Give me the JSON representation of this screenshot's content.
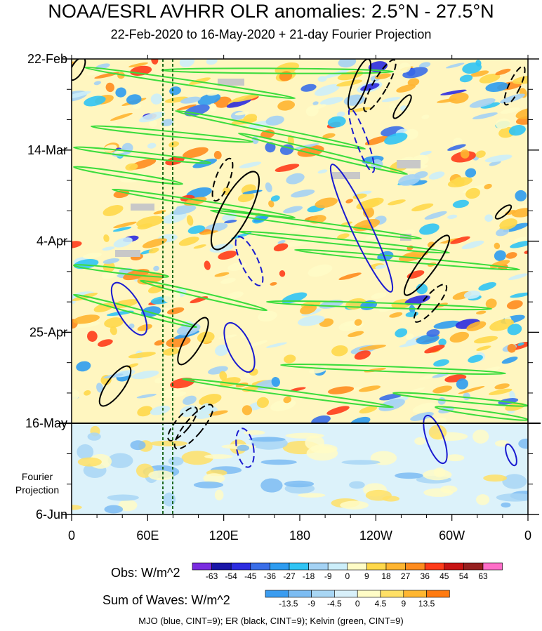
{
  "chart_data": {
    "type": "heatmap",
    "title": "NOAA/ESRL AVHRR OLR anomalies: 2.5°N - 27.5°N",
    "subtitle": "22-Feb-2020 to 16-May-2020 + 21-day Fourier Projection",
    "x_ticks": [
      "0",
      "60E",
      "120E",
      "180",
      "120W",
      "60W",
      "0"
    ],
    "x_tick_values": [
      0,
      60,
      120,
      180,
      240,
      300,
      360
    ],
    "y_ticks": [
      "22-Feb",
      "14-Mar",
      "4-Apr",
      "25-Apr",
      "16-May",
      "6-Jun"
    ],
    "y_tick_days": [
      0,
      21,
      42,
      63,
      84,
      105
    ],
    "projection_label": [
      "Fourier",
      "Projection"
    ],
    "projection_start_day": 84,
    "reference_lines_lon": [
      72,
      80
    ],
    "obs_colorbar": {
      "title": "Obs: W/m^2",
      "levels": [
        "-63",
        "-54",
        "-45",
        "-36",
        "-27",
        "-18",
        "-9",
        "0",
        "9",
        "18",
        "27",
        "36",
        "45",
        "54",
        "63"
      ],
      "colors": [
        "#7a2ce0",
        "#1a16a8",
        "#2c2ce0",
        "#3a6ee8",
        "#2e9cf0",
        "#30c4f4",
        "#a4d2f4",
        "#cceefa",
        "#fffcc6",
        "#ffd84a",
        "#ffb530",
        "#ff8c1e",
        "#ff3c1a",
        "#c81414",
        "#962020",
        "#ff6ec8"
      ]
    },
    "waves_colorbar": {
      "title": "Sum of Waves: W/m^2",
      "levels": [
        "-13.5",
        "-9",
        "-4.5",
        "0",
        "4.5",
        "9",
        "13.5"
      ],
      "colors": [
        "#3a9cf0",
        "#7cbcf2",
        "#a8d6f4",
        "#d8f0fa",
        "#fffcc6",
        "#ffe066",
        "#ffb630",
        "#ff7a10"
      ]
    },
    "footnote": "MJO (blue, CINT=9); ER (black, CINT=9); Kelvin (green, CINT=9)"
  }
}
